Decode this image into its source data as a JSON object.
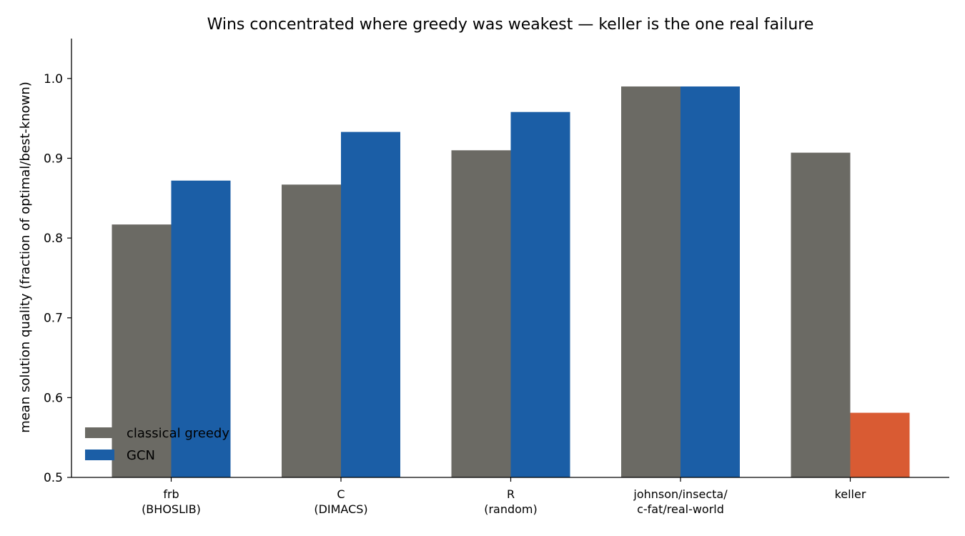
{
  "chart_data": {
    "type": "bar",
    "title": "Wins concentrated where greedy was weakest — keller is the one real failure",
    "xlabel": "",
    "ylabel": "mean solution quality (fraction of optimal/best-known)",
    "ylim": [
      0.5,
      1.05
    ],
    "yticks": [
      "0.5",
      "0.6",
      "0.7",
      "0.8",
      "0.9",
      "1.0"
    ],
    "categories": [
      [
        "frb",
        "(BHOSLIB)"
      ],
      [
        "C",
        "(DIMACS)"
      ],
      [
        "R",
        "(random)"
      ],
      [
        "johnson/insecta/",
        "c-fat/real-world"
      ],
      [
        "keller"
      ]
    ],
    "series": [
      {
        "name": "classical greedy",
        "color": "#6b6a64",
        "values": [
          0.817,
          0.867,
          0.91,
          0.99,
          0.907
        ]
      },
      {
        "name": "GCN",
        "color": "#1b5ea6",
        "values": [
          0.872,
          0.933,
          0.958,
          0.99,
          0.581
        ]
      }
    ],
    "highlight": {
      "series": 1,
      "index": 4,
      "color": "#d95b33"
    },
    "grid": false,
    "legend_position": "lower-left"
  }
}
